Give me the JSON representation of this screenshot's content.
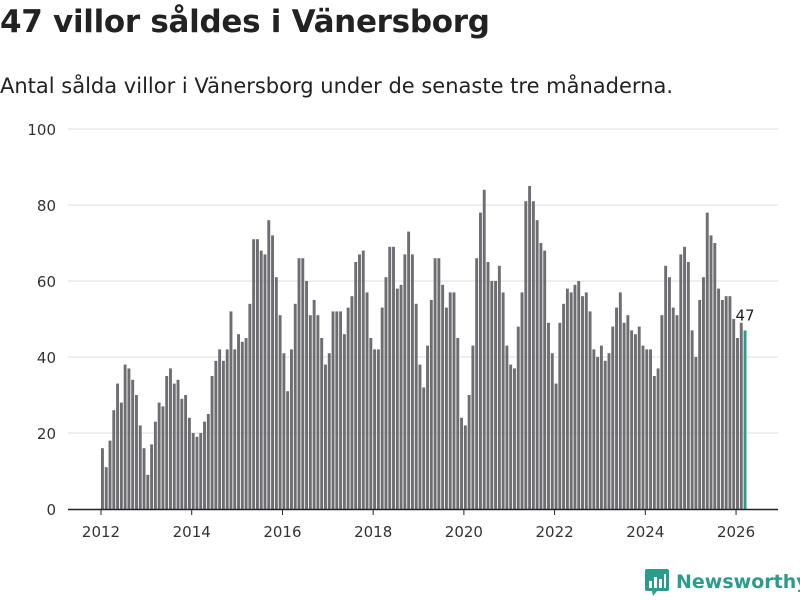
{
  "title": "47 villor såldes i Vänersborg",
  "subtitle": "Antal sålda villor i Vänersborg under de senaste tre månaderna.",
  "brand": {
    "name": "Newsworthy",
    "color": "#2a9c8c"
  },
  "chart_data": {
    "type": "bar",
    "title": "47 villor såldes i Vänersborg",
    "xlabel": "",
    "ylabel": "",
    "ylim": [
      0,
      100
    ],
    "yticks": [
      0,
      20,
      40,
      60,
      80,
      100
    ],
    "xticks": [
      "2012",
      "2014",
      "2016",
      "2018",
      "2020",
      "2022",
      "2024",
      "2026"
    ],
    "x_start": "2012-01",
    "grid": true,
    "bar_color": "#6d6d72",
    "highlight_color": "#2a9c8c",
    "highlight_label": "47",
    "series": [
      {
        "name": "Sålda villor (senaste tre månaderna)",
        "values": [
          16,
          11,
          18,
          26,
          33,
          28,
          38,
          37,
          34,
          30,
          22,
          16,
          9,
          17,
          23,
          28,
          27,
          35,
          37,
          33,
          34,
          29,
          30,
          24,
          20,
          19,
          20,
          23,
          25,
          35,
          39,
          42,
          39,
          42,
          52,
          42,
          46,
          44,
          45,
          54,
          71,
          71,
          68,
          67,
          76,
          72,
          61,
          51,
          41,
          31,
          42,
          54,
          66,
          66,
          60,
          51,
          55,
          51,
          45,
          38,
          41,
          52,
          52,
          52,
          46,
          53,
          56,
          65,
          67,
          68,
          57,
          45,
          42,
          42,
          53,
          61,
          69,
          69,
          58,
          59,
          67,
          73,
          67,
          54,
          38,
          32,
          43,
          55,
          66,
          66,
          59,
          53,
          57,
          57,
          45,
          24,
          22,
          30,
          43,
          66,
          78,
          84,
          65,
          60,
          60,
          64,
          57,
          43,
          38,
          37,
          48,
          57,
          81,
          85,
          81,
          76,
          70,
          68,
          49,
          41,
          33,
          49,
          54,
          58,
          57,
          59,
          60,
          56,
          57,
          52,
          42,
          40,
          43,
          39,
          41,
          48,
          53,
          57,
          49,
          51,
          47,
          46,
          48,
          43,
          42,
          42,
          35,
          37,
          51,
          64,
          61,
          53,
          51,
          67,
          69,
          65,
          47,
          40,
          55,
          61,
          78,
          72,
          70,
          58,
          55,
          56,
          56,
          50,
          45,
          49,
          47
        ]
      }
    ]
  }
}
